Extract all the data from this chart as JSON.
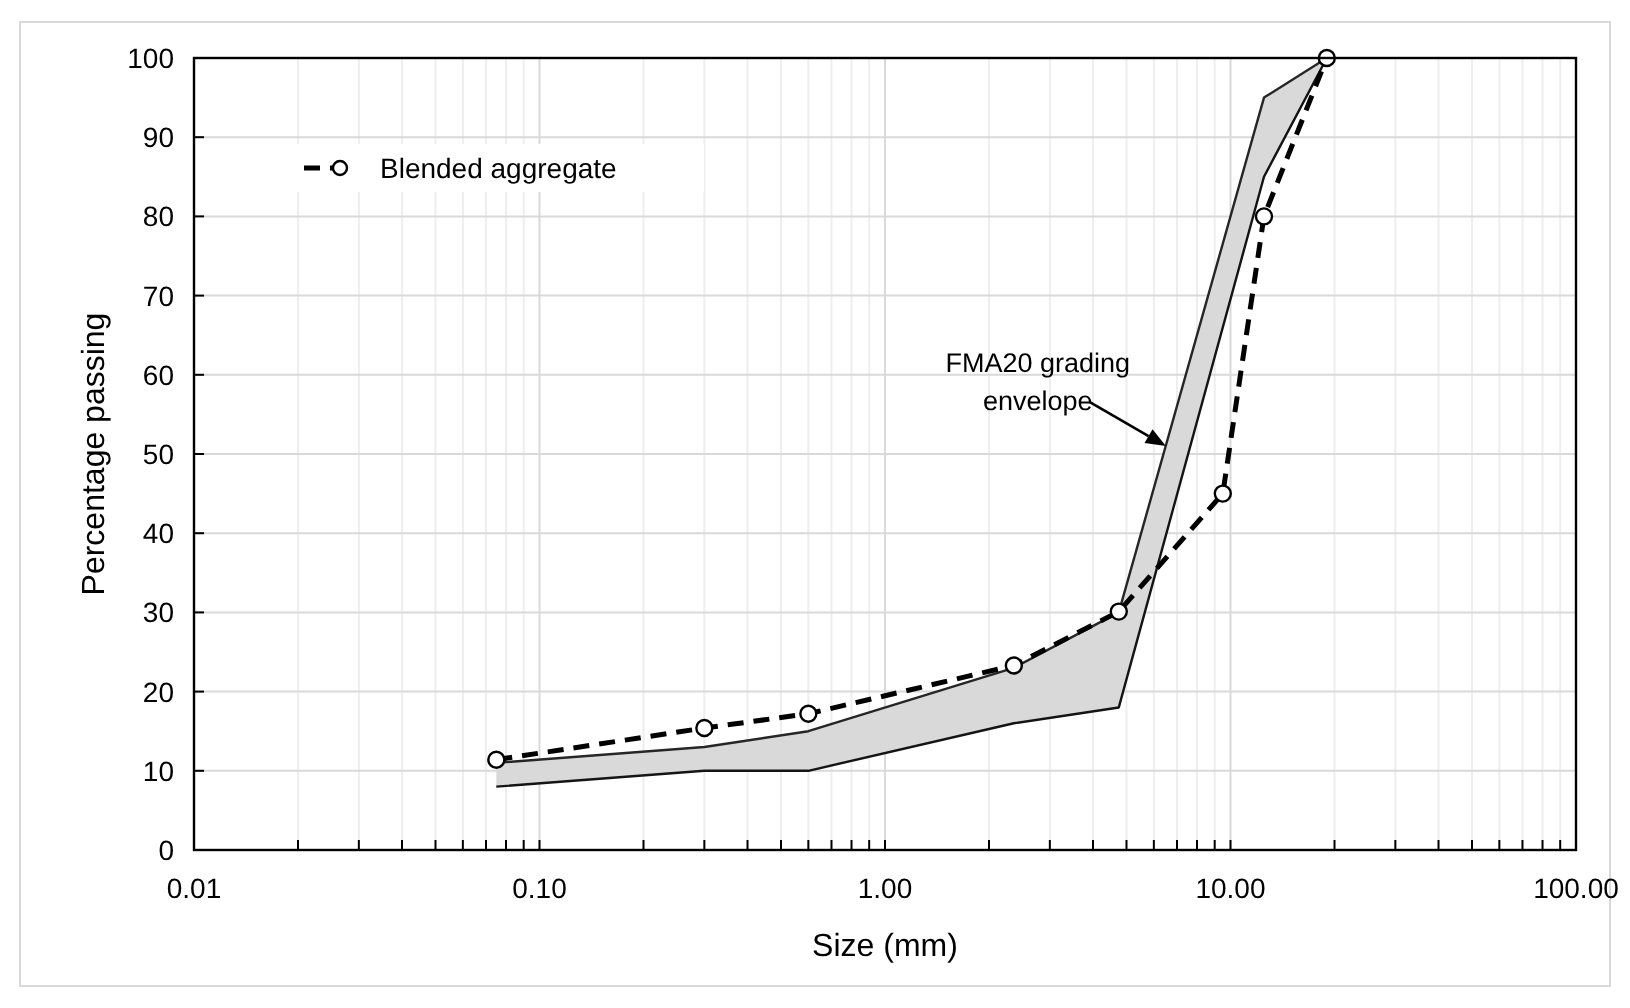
{
  "chart_data": {
    "type": "line",
    "xlabel": "Size (mm)",
    "ylabel": "Percentage passing",
    "log": "x",
    "xlim": [
      0.01,
      100
    ],
    "ylim": [
      0,
      100
    ],
    "xticks": [
      0.01,
      {
        "value": 0.02,
        "label": null
      },
      {
        "value": 0.03,
        "label": null
      },
      {
        "value": 0.04,
        "label": null
      },
      {
        "value": 0.05,
        "label": null
      },
      {
        "value": 0.06,
        "label": null
      },
      {
        "value": 0.07,
        "label": null
      },
      {
        "value": 0.08,
        "label": null
      },
      {
        "value": 0.09,
        "label": null
      },
      {
        "value": 0.1,
        "label": "0.10"
      },
      {
        "value": 0.2,
        "label": null
      },
      {
        "value": 0.3,
        "label": null
      },
      {
        "value": 0.4,
        "label": null
      },
      {
        "value": 0.5,
        "label": null
      },
      {
        "value": 0.6,
        "label": null
      },
      {
        "value": 0.7,
        "label": null
      },
      {
        "value": 0.8,
        "label": null
      },
      {
        "value": 0.9,
        "label": null
      },
      {
        "value": 1,
        "label": "1.00"
      },
      {
        "value": 2,
        "label": null
      },
      {
        "value": 3,
        "label": null
      },
      {
        "value": 4,
        "label": null
      },
      {
        "value": 5,
        "label": null
      },
      {
        "value": 6,
        "label": null
      },
      {
        "value": 7,
        "label": null
      },
      {
        "value": 8,
        "label": null
      },
      {
        "value": 9,
        "label": null
      },
      {
        "value": 10,
        "label": "10.00"
      },
      {
        "value": 20,
        "label": null
      },
      {
        "value": 30,
        "label": null
      },
      {
        "value": 40,
        "label": null
      },
      {
        "value": 50,
        "label": null
      },
      {
        "value": 60,
        "label": null
      },
      {
        "value": 70,
        "label": null
      },
      {
        "value": 80,
        "label": null
      },
      {
        "value": 90,
        "label": null
      },
      {
        "value": 100,
        "label": "100.00"
      }
    ],
    "yticks": [
      0,
      10,
      20,
      30,
      40,
      50,
      60,
      70,
      80,
      90,
      100
    ],
    "grid": true,
    "legend": "top left",
    "series": [
      {
        "color": "#262626",
        "x": [
          0.075,
          0.3,
          0.6,
          2.36,
          4.75,
          12.5,
          19
        ],
        "values": [
          11,
          13,
          15,
          23,
          30,
          95,
          100
        ],
        "lower": [
          8,
          10,
          10,
          16,
          18,
          85,
          100
        ],
        "upper": [
          11,
          13,
          15,
          23,
          30,
          95,
          100
        ]
      },
      {
        "type": "line",
        "color": "#141414",
        "x": [
          0.075,
          0.3,
          0.6,
          2.36,
          4.75,
          12.5,
          19
        ],
        "values": [
          8,
          10,
          10,
          16,
          18,
          85,
          100
        ]
      },
      {
        "type": "line",
        "name": "Blended aggregate",
        "color": "#000000",
        "marker": "circle",
        "line_style": "dashed",
        "x": [
          0.075,
          0.3,
          0.6,
          2.36,
          4.75,
          9.5,
          12.5,
          19
        ],
        "values": [
          11.4,
          15.4,
          17.2,
          23.3,
          30.1,
          45,
          80,
          100
        ]
      }
    ],
    "annotations": [
      {
        "text": "FMA20 grading\nenvelope",
        "x": 6.5,
        "y": 51
      }
    ]
  }
}
